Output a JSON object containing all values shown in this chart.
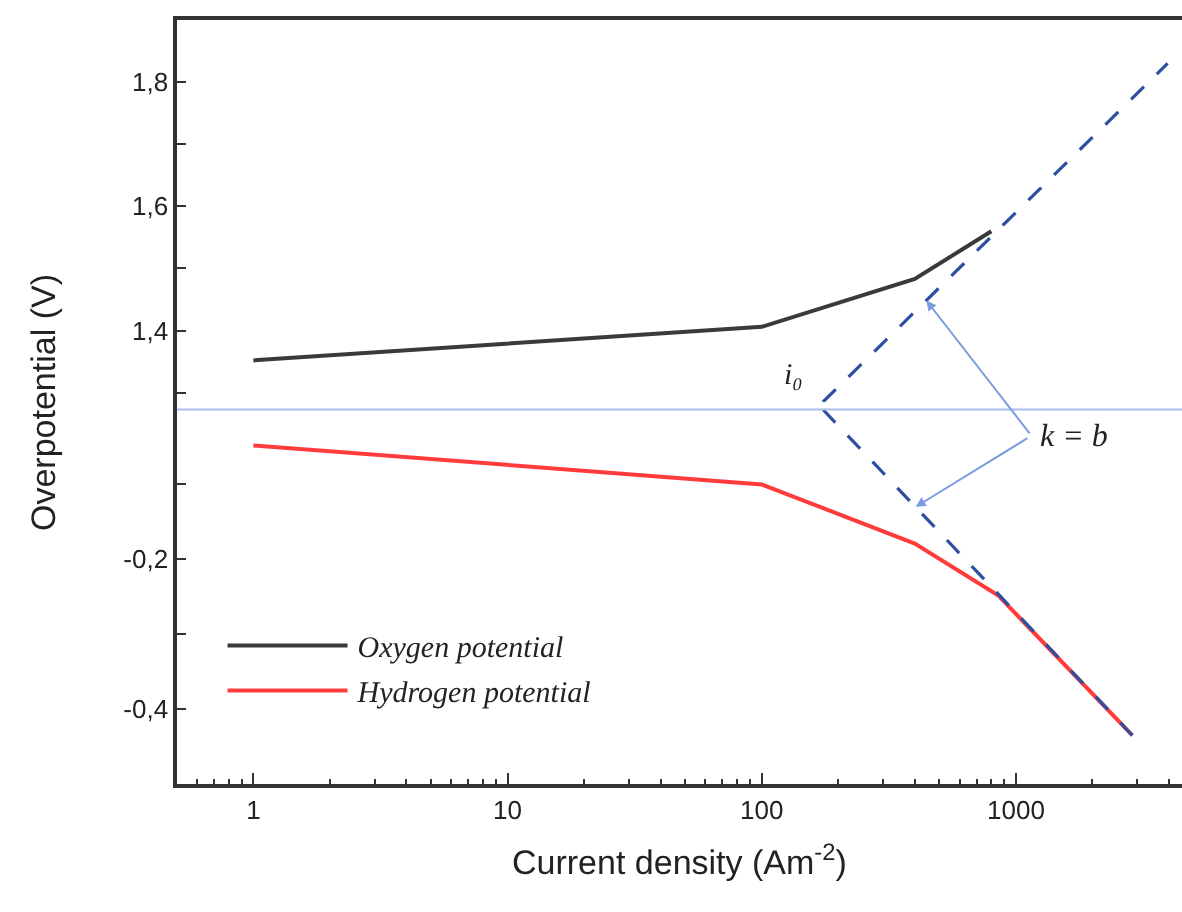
{
  "chart_data": [
    {
      "type": "line",
      "x": [
        1,
        100,
        400,
        800
      ],
      "xlim": [
        0.5,
        4500
      ],
      "ylim": [
        1.285,
        1.9
      ],
      "log": "x",
      "tick_labels": "y",
      "yticks": [
        {
          "value": 1.3,
          "label": null
        },
        {
          "value": 1.4,
          "label": "1,4"
        },
        {
          "value": 1.5,
          "label": null
        },
        {
          "value": 1.6,
          "label": "1,6"
        },
        {
          "value": 1.7,
          "label": null
        },
        {
          "value": 1.8,
          "label": "1,8"
        }
      ],
      "series": [
        {
          "name": "Oxygen potential",
          "color": "#3a3a3a",
          "values": [
            1.352,
            1.406,
            1.483,
            1.56
          ],
          "line_style": "solid"
        },
        {
          "color": "#2e4fa0",
          "x": [
            174,
            3950
          ],
          "values": [
            1.285,
            1.83
          ],
          "line_style": "dashed"
        }
      ],
      "annotations": [
        "i₀"
      ]
    },
    {
      "type": "line",
      "x": [
        1,
        100,
        400,
        850,
        2870
      ],
      "xlim": [
        0.5,
        4500
      ],
      "ylim": [
        -0.5,
        0.01
      ],
      "log": "x",
      "legend": "bottom left",
      "xticks": [
        1,
        10,
        100,
        1000
      ],
      "yticks": [
        {
          "value": -0.1,
          "label": null
        },
        {
          "value": -0.2,
          "label": "-0,2"
        },
        {
          "value": -0.3,
          "label": null
        },
        {
          "value": -0.4,
          "label": "-0,4"
        }
      ],
      "xlabel": "Current density (Am$^{-2}$)",
      "ylabel": "Overpotential (V)",
      "series": [
        {
          "name": "Hydrogen potential",
          "color": "#ff3b3b",
          "values": [
            -0.048,
            -0.1,
            -0.179,
            -0.248,
            -0.435
          ],
          "line_style": "solid"
        },
        {
          "color": "#2e4fa0",
          "x": [
            174,
            2870
          ],
          "values": [
            0,
            -0.435
          ],
          "line_style": "dashed"
        }
      ],
      "ref_lines": [
        {
          "axis": "y",
          "value": 0,
          "color": "#a9bdf0"
        }
      ],
      "annotations": [
        {
          "text": "k = b",
          "x": 403,
          "y": -0.13
        }
      ]
    }
  ]
}
